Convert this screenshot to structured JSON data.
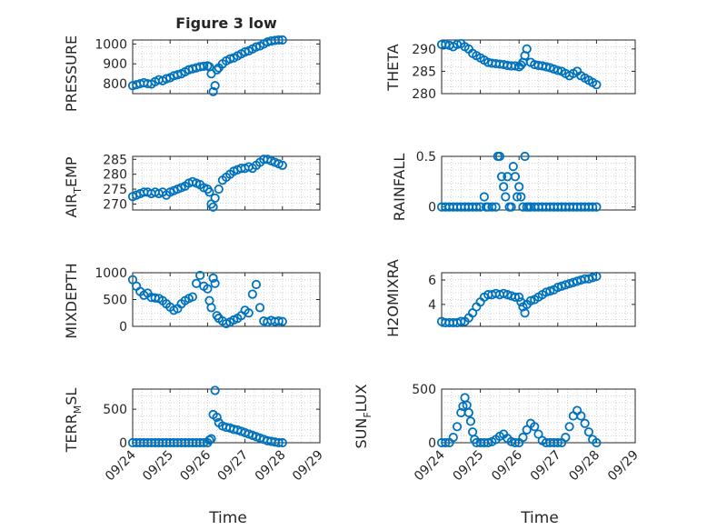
{
  "figure": {
    "title": "Figure 3 low"
  },
  "colors": {
    "marker": "#0072BD",
    "axis": "#262626",
    "grid": "#c8c8c8"
  },
  "chart_data": [
    {
      "type": "scatter",
      "id": "pressure",
      "ylabel": "PRESSURE",
      "xlabel": "",
      "xlim": [
        0,
        5
      ],
      "ylim": [
        750,
        1020
      ],
      "yticks": [
        800,
        900,
        1000
      ],
      "ytick_labels": [
        "800",
        "900",
        "1000"
      ],
      "xtick_labels": [],
      "x": [
        0,
        0.1,
        0.2,
        0.3,
        0.4,
        0.5,
        0.6,
        0.7,
        0.8,
        0.9,
        1.0,
        1.1,
        1.2,
        1.3,
        1.4,
        1.5,
        1.6,
        1.7,
        1.8,
        1.9,
        2.0,
        2.05,
        2.1,
        2.15,
        2.2,
        2.25,
        2.3,
        2.4,
        2.5,
        2.6,
        2.7,
        2.8,
        2.9,
        3.0,
        3.1,
        3.2,
        3.3,
        3.4,
        3.5,
        3.6,
        3.7,
        3.8,
        3.9,
        4.0
      ],
      "y": [
        790,
        795,
        800,
        805,
        800,
        798,
        810,
        820,
        815,
        825,
        830,
        840,
        845,
        850,
        860,
        870,
        875,
        880,
        885,
        888,
        890,
        885,
        850,
        760,
        790,
        870,
        880,
        900,
        915,
        925,
        930,
        940,
        950,
        960,
        965,
        975,
        985,
        990,
        1000,
        1010,
        1015,
        1018,
        1020,
        1020
      ]
    },
    {
      "type": "scatter",
      "id": "theta",
      "ylabel": "THETA",
      "xlabel": "",
      "xlim": [
        0,
        5
      ],
      "ylim": [
        280,
        292
      ],
      "yticks": [
        280,
        285,
        290
      ],
      "ytick_labels": [
        "280",
        "285",
        "290"
      ],
      "xtick_labels": [],
      "x": [
        0,
        0.1,
        0.2,
        0.3,
        0.4,
        0.5,
        0.6,
        0.7,
        0.8,
        0.9,
        1.0,
        1.1,
        1.2,
        1.3,
        1.4,
        1.5,
        1.6,
        1.7,
        1.8,
        1.9,
        2.0,
        2.05,
        2.1,
        2.15,
        2.2,
        2.3,
        2.4,
        2.5,
        2.6,
        2.7,
        2.8,
        2.9,
        3.0,
        3.1,
        3.2,
        3.3,
        3.4,
        3.5,
        3.6,
        3.7,
        3.8,
        3.9,
        4.0
      ],
      "y": [
        291,
        291,
        290.8,
        290.5,
        291,
        291.2,
        290.5,
        290,
        289,
        288.5,
        288,
        287.5,
        287,
        286.8,
        286.7,
        286.6,
        286.5,
        286.3,
        286.2,
        286.2,
        286,
        286.4,
        287,
        288.5,
        290,
        287,
        286.5,
        286.3,
        286.2,
        286,
        285.8,
        285.5,
        285.2,
        285,
        284.5,
        284,
        284.5,
        285,
        284,
        283.5,
        283,
        282.5,
        282
      ]
    },
    {
      "type": "scatter",
      "id": "air_temp",
      "ylabel": "AIR_TEMP",
      "xlabel": "",
      "xlim": [
        0,
        5
      ],
      "ylim": [
        268,
        286
      ],
      "yticks": [
        270,
        275,
        280,
        285
      ],
      "ytick_labels": [
        "270",
        "275",
        "280",
        "285"
      ],
      "xtick_labels": [],
      "x": [
        0,
        0.1,
        0.2,
        0.3,
        0.4,
        0.5,
        0.6,
        0.7,
        0.8,
        0.9,
        1.0,
        1.1,
        1.2,
        1.3,
        1.4,
        1.5,
        1.6,
        1.7,
        1.8,
        1.9,
        2.0,
        2.05,
        2.1,
        2.15,
        2.2,
        2.3,
        2.4,
        2.5,
        2.6,
        2.7,
        2.8,
        2.9,
        3.0,
        3.1,
        3.2,
        3.3,
        3.4,
        3.5,
        3.6,
        3.7,
        3.8,
        3.9,
        4.0
      ],
      "y": [
        272.5,
        273,
        273.5,
        274,
        274,
        273.5,
        274,
        273.5,
        274,
        273,
        274,
        274.5,
        275,
        275.5,
        276,
        277,
        277.5,
        277,
        276.5,
        275.5,
        275,
        274,
        270,
        269,
        272,
        275,
        278,
        279,
        280,
        281,
        281.5,
        282,
        282,
        282.5,
        282,
        283,
        284,
        285,
        285,
        284.5,
        284,
        283.5,
        283
      ]
    },
    {
      "type": "scatter",
      "id": "rainfall",
      "ylabel": "RAINFALL",
      "xlabel": "",
      "xlim": [
        0,
        5
      ],
      "ylim": [
        -0.03,
        0.5
      ],
      "yticks": [
        0,
        0.5
      ],
      "ytick_labels": [
        "0",
        "0.5"
      ],
      "xtick_labels": [],
      "x": [
        0,
        0.1,
        0.2,
        0.3,
        0.4,
        0.5,
        0.6,
        0.7,
        0.8,
        0.9,
        1.0,
        1.1,
        1.15,
        1.2,
        1.3,
        1.4,
        1.45,
        1.5,
        1.55,
        1.6,
        1.65,
        1.7,
        1.75,
        1.8,
        1.85,
        1.9,
        1.95,
        2.0,
        2.05,
        2.1,
        2.15,
        2.2,
        2.25,
        2.3,
        2.4,
        2.5,
        2.6,
        2.7,
        2.8,
        2.9,
        3.0,
        3.1,
        3.2,
        3.3,
        3.4,
        3.5,
        3.6,
        3.7,
        3.8,
        3.9,
        4.0
      ],
      "y": [
        0,
        0,
        0,
        0,
        0,
        0,
        0,
        0,
        0,
        0,
        0,
        0.1,
        0,
        0,
        0,
        0,
        0.5,
        0.5,
        0.3,
        0.2,
        0.1,
        0.3,
        0,
        0,
        0.4,
        0.3,
        0.1,
        0.2,
        0.1,
        0,
        0.5,
        0,
        0,
        0,
        0,
        0,
        0,
        0,
        0,
        0,
        0,
        0,
        0,
        0,
        0,
        0,
        0,
        0,
        0,
        0,
        0
      ]
    },
    {
      "type": "scatter",
      "id": "mixdepth",
      "ylabel": "MIXDEPTH",
      "xlabel": "",
      "xlim": [
        0,
        5
      ],
      "ylim": [
        0,
        1000
      ],
      "yticks": [
        0,
        500,
        1000
      ],
      "ytick_labels": [
        "0",
        "500",
        "1000"
      ],
      "xtick_labels": [],
      "x": [
        0,
        0.1,
        0.2,
        0.3,
        0.4,
        0.5,
        0.6,
        0.7,
        0.8,
        0.9,
        1.0,
        1.1,
        1.2,
        1.3,
        1.4,
        1.5,
        1.6,
        1.7,
        1.8,
        1.9,
        2.0,
        2.05,
        2.1,
        2.15,
        2.2,
        2.25,
        2.3,
        2.4,
        2.5,
        2.6,
        2.7,
        2.8,
        2.9,
        3.0,
        3.1,
        3.2,
        3.3,
        3.4,
        3.5,
        3.6,
        3.7,
        3.8,
        3.9,
        4.0
      ],
      "y": [
        870,
        750,
        650,
        580,
        620,
        540,
        530,
        520,
        480,
        420,
        360,
        300,
        330,
        420,
        480,
        520,
        550,
        800,
        950,
        750,
        700,
        480,
        350,
        900,
        800,
        200,
        150,
        100,
        50,
        80,
        120,
        150,
        200,
        300,
        250,
        600,
        780,
        350,
        100,
        80,
        110,
        90,
        100,
        90
      ]
    },
    {
      "type": "scatter",
      "id": "h2omixra",
      "ylabel": "H2OMIXRA",
      "xlabel": "",
      "xlim": [
        0,
        5
      ],
      "ylim": [
        2.2,
        6.6
      ],
      "yticks": [
        4,
        6
      ],
      "ytick_labels": [
        "4",
        "6"
      ],
      "xtick_labels": [],
      "x": [
        0,
        0.1,
        0.2,
        0.3,
        0.4,
        0.5,
        0.6,
        0.7,
        0.8,
        0.9,
        1.0,
        1.1,
        1.2,
        1.3,
        1.4,
        1.5,
        1.6,
        1.7,
        1.8,
        1.9,
        2.0,
        2.05,
        2.1,
        2.15,
        2.2,
        2.3,
        2.4,
        2.5,
        2.6,
        2.7,
        2.8,
        2.9,
        3.0,
        3.1,
        3.2,
        3.3,
        3.4,
        3.5,
        3.6,
        3.7,
        3.8,
        3.9,
        4.0
      ],
      "y": [
        2.6,
        2.5,
        2.5,
        2.5,
        2.5,
        2.6,
        2.6,
        2.9,
        3.3,
        3.8,
        4.2,
        4.6,
        4.8,
        4.8,
        4.9,
        4.8,
        4.9,
        4.8,
        4.7,
        4.6,
        4.6,
        4.2,
        3.8,
        3.3,
        4.0,
        4.3,
        4.4,
        4.6,
        4.8,
        5.0,
        5.1,
        5.2,
        5.4,
        5.5,
        5.6,
        5.7,
        5.8,
        5.9,
        6.0,
        6.1,
        6.1,
        6.2,
        6.3
      ]
    },
    {
      "type": "scatter",
      "id": "terr_msl",
      "ylabel": "TERR_MSL",
      "xlabel": "Time",
      "xlim": [
        0,
        5
      ],
      "ylim": [
        0,
        800
      ],
      "yticks": [
        0,
        500
      ],
      "ytick_labels": [
        "0",
        "500"
      ],
      "xticks": [
        0,
        1,
        2,
        3,
        4,
        5
      ],
      "xtick_labels": [
        "09/24",
        "09/25",
        "09/26",
        "09/27",
        "09/28",
        "09/29"
      ],
      "x": [
        0,
        0.1,
        0.2,
        0.3,
        0.4,
        0.5,
        0.6,
        0.7,
        0.8,
        0.9,
        1.0,
        1.1,
        1.2,
        1.3,
        1.4,
        1.5,
        1.6,
        1.7,
        1.8,
        1.9,
        2.0,
        2.05,
        2.1,
        2.15,
        2.2,
        2.25,
        2.3,
        2.4,
        2.5,
        2.6,
        2.7,
        2.8,
        2.9,
        3.0,
        3.1,
        3.2,
        3.3,
        3.4,
        3.5,
        3.6,
        3.7,
        3.8,
        3.9,
        4.0
      ],
      "y": [
        0,
        0,
        0,
        0,
        0,
        0,
        0,
        0,
        0,
        0,
        0,
        0,
        0,
        0,
        0,
        0,
        0,
        0,
        0,
        0,
        0,
        40,
        60,
        420,
        780,
        380,
        300,
        250,
        230,
        220,
        200,
        190,
        170,
        150,
        130,
        110,
        90,
        70,
        50,
        30,
        20,
        10,
        0,
        0
      ]
    },
    {
      "type": "scatter",
      "id": "sun_flux",
      "ylabel": "SUN_FLUX",
      "xlabel": "Time",
      "xlim": [
        0,
        5
      ],
      "ylim": [
        0,
        500
      ],
      "yticks": [
        0,
        500
      ],
      "ytick_labels": [
        "0",
        "500"
      ],
      "xticks": [
        0,
        1,
        2,
        3,
        4,
        5
      ],
      "xtick_labels": [
        "09/24",
        "09/25",
        "09/26",
        "09/27",
        "09/28",
        "09/29"
      ],
      "x": [
        0,
        0.1,
        0.2,
        0.3,
        0.4,
        0.5,
        0.55,
        0.6,
        0.65,
        0.7,
        0.75,
        0.8,
        0.85,
        0.9,
        1.0,
        1.1,
        1.2,
        1.3,
        1.4,
        1.5,
        1.6,
        1.7,
        1.8,
        1.9,
        2.0,
        2.1,
        2.2,
        2.3,
        2.4,
        2.5,
        2.6,
        2.7,
        2.8,
        2.9,
        3.0,
        3.1,
        3.2,
        3.3,
        3.4,
        3.5,
        3.6,
        3.7,
        3.8,
        3.9,
        4.0
      ],
      "y": [
        0,
        0,
        0,
        50,
        150,
        280,
        340,
        420,
        350,
        280,
        200,
        100,
        30,
        0,
        0,
        0,
        0,
        10,
        30,
        60,
        80,
        40,
        10,
        0,
        0,
        50,
        120,
        180,
        150,
        80,
        20,
        0,
        0,
        0,
        0,
        0,
        50,
        150,
        250,
        300,
        250,
        180,
        100,
        30,
        0
      ]
    }
  ]
}
